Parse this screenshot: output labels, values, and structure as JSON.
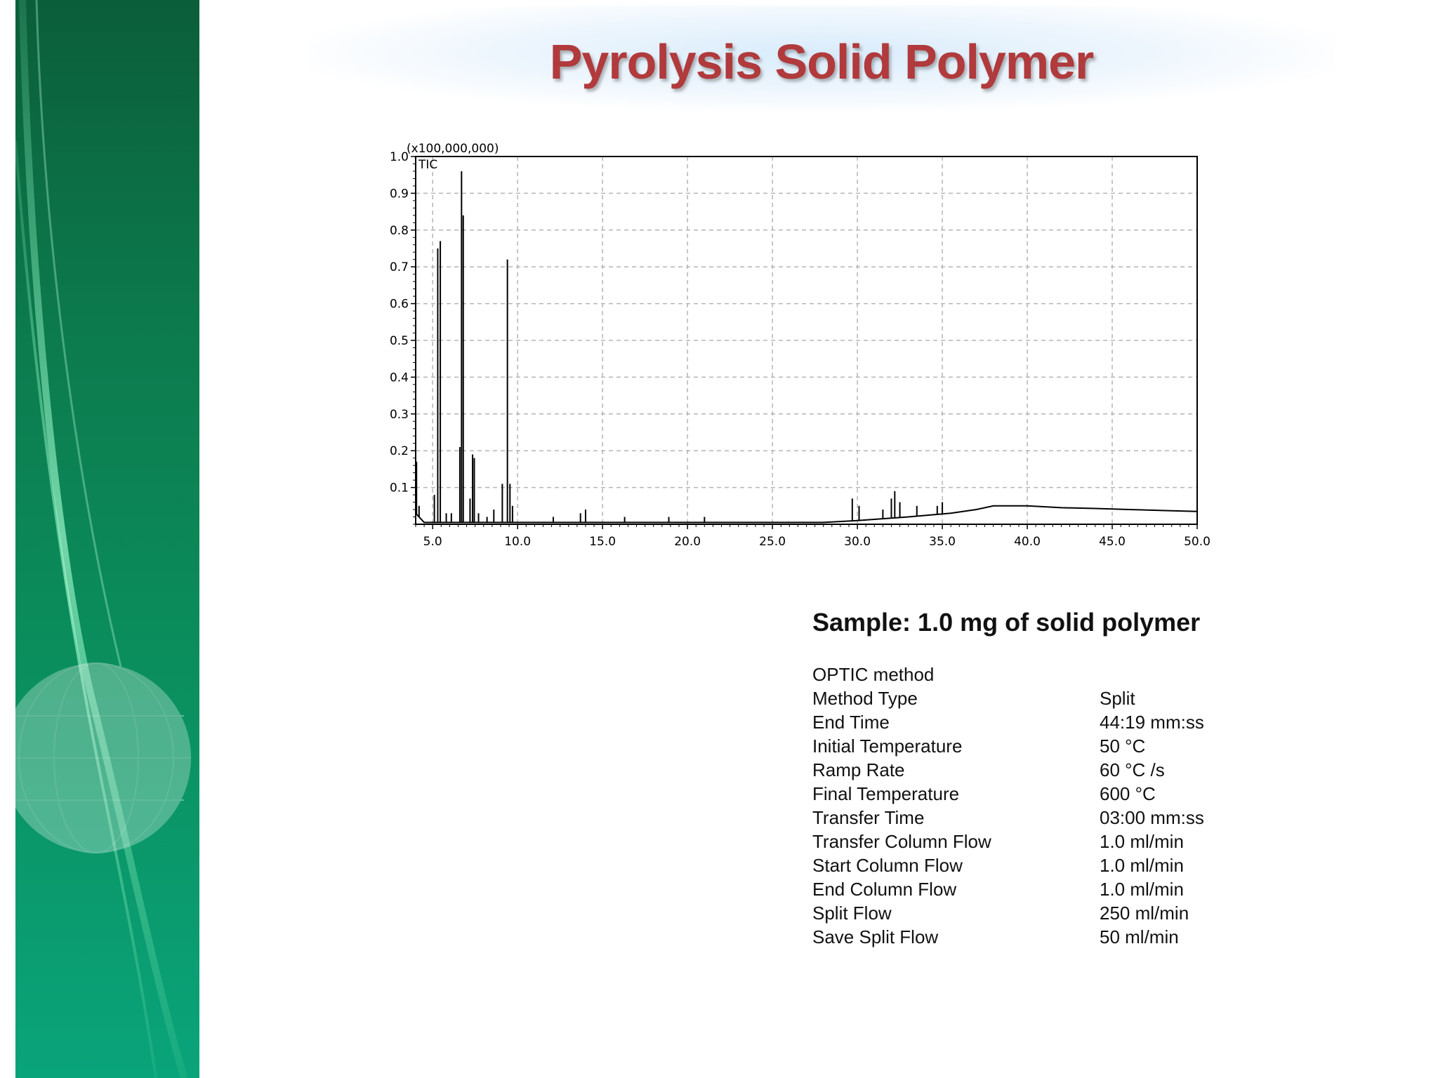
{
  "slide": {
    "title": "Pyrolysis Solid Polymer",
    "sample": "Sample:  1.0 mg of solid polymer",
    "method_heading": "OPTIC method",
    "parameters": [
      {
        "label": "Method Type",
        "value": "Split"
      },
      {
        "label": "End Time",
        "value": "44:19 mm:ss"
      },
      {
        "label": "Initial Temperature",
        "value": "50 °C"
      },
      {
        "label": "Ramp Rate",
        "value": "60 °C /s"
      },
      {
        "label": "Final Temperature",
        "value": "600 °C"
      },
      {
        "label": "Transfer Time",
        "value": "03:00 mm:ss"
      },
      {
        "label": "Transfer Column Flow",
        "value": "1.0 ml/min"
      },
      {
        "label": "Start Column Flow",
        "value": "1.0 ml/min"
      },
      {
        "label": "End Column Flow",
        "value": "1.0 ml/min"
      },
      {
        "label": "Split Flow",
        "value": "250 ml/min"
      },
      {
        "label": "Save Split Flow",
        "value": "50 ml/min"
      }
    ],
    "colors": {
      "title": "#b03a3c",
      "sidebar": "#0c7a4d",
      "grid": "#b5b5b5",
      "trace": "#000000"
    }
  },
  "chart_data": {
    "type": "line",
    "series": [
      {
        "name": "TIC"
      }
    ],
    "y_multiplier_label": "(x100,000,000)",
    "series_label": "TIC",
    "xlim": [
      4.0,
      50.0
    ],
    "ylim": [
      0,
      1.0
    ],
    "x_ticks": [
      "5.0",
      "10.0",
      "15.0",
      "20.0",
      "25.0",
      "30.0",
      "35.0",
      "40.0",
      "45.0",
      "50.0"
    ],
    "y_ticks": [
      "0.1",
      "0.2",
      "0.3",
      "0.4",
      "0.5",
      "0.6",
      "0.7",
      "0.8",
      "0.9",
      "1.0"
    ],
    "grid": true,
    "peaks": [
      {
        "x": 4.05,
        "y": 0.17
      },
      {
        "x": 4.2,
        "y": 0.05
      },
      {
        "x": 5.1,
        "y": 0.08
      },
      {
        "x": 5.3,
        "y": 0.75
      },
      {
        "x": 5.45,
        "y": 0.77
      },
      {
        "x": 5.8,
        "y": 0.03
      },
      {
        "x": 6.1,
        "y": 0.03
      },
      {
        "x": 6.6,
        "y": 0.21
      },
      {
        "x": 6.7,
        "y": 0.96
      },
      {
        "x": 6.8,
        "y": 0.84
      },
      {
        "x": 7.2,
        "y": 0.07
      },
      {
        "x": 7.35,
        "y": 0.19
      },
      {
        "x": 7.45,
        "y": 0.18
      },
      {
        "x": 7.7,
        "y": 0.03
      },
      {
        "x": 8.2,
        "y": 0.02
      },
      {
        "x": 8.6,
        "y": 0.04
      },
      {
        "x": 9.1,
        "y": 0.11
      },
      {
        "x": 9.4,
        "y": 0.72
      },
      {
        "x": 9.55,
        "y": 0.11
      },
      {
        "x": 9.7,
        "y": 0.05
      },
      {
        "x": 12.1,
        "y": 0.02
      },
      {
        "x": 13.7,
        "y": 0.03
      },
      {
        "x": 14.0,
        "y": 0.04
      },
      {
        "x": 16.3,
        "y": 0.02
      },
      {
        "x": 18.9,
        "y": 0.02
      },
      {
        "x": 21.0,
        "y": 0.02
      },
      {
        "x": 29.7,
        "y": 0.07
      },
      {
        "x": 30.1,
        "y": 0.05
      },
      {
        "x": 31.5,
        "y": 0.04
      },
      {
        "x": 32.0,
        "y": 0.07
      },
      {
        "x": 32.2,
        "y": 0.09
      },
      {
        "x": 32.5,
        "y": 0.06
      },
      {
        "x": 33.5,
        "y": 0.05
      },
      {
        "x": 34.7,
        "y": 0.05
      },
      {
        "x": 35.0,
        "y": 0.06
      }
    ],
    "baseline": [
      {
        "x": 4.0,
        "y": 0.03
      },
      {
        "x": 4.5,
        "y": 0.005
      },
      {
        "x": 10.5,
        "y": 0.005
      },
      {
        "x": 28.0,
        "y": 0.005
      },
      {
        "x": 30.0,
        "y": 0.01
      },
      {
        "x": 33.0,
        "y": 0.02
      },
      {
        "x": 35.5,
        "y": 0.03
      },
      {
        "x": 37.0,
        "y": 0.04
      },
      {
        "x": 38.0,
        "y": 0.05
      },
      {
        "x": 40.0,
        "y": 0.05
      },
      {
        "x": 42.0,
        "y": 0.045
      },
      {
        "x": 44.0,
        "y": 0.043
      },
      {
        "x": 46.0,
        "y": 0.04
      },
      {
        "x": 50.0,
        "y": 0.035
      }
    ]
  }
}
